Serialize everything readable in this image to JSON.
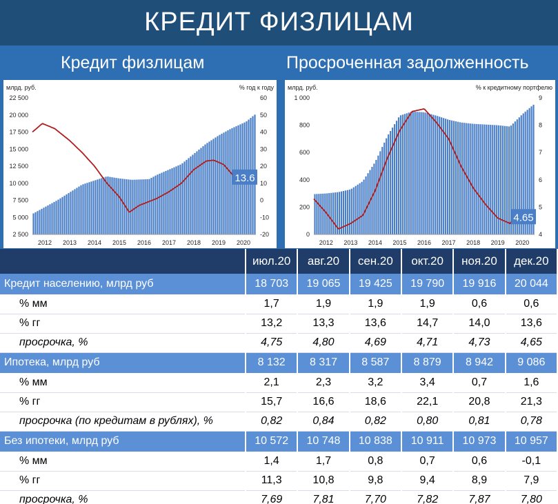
{
  "page_title": "КРЕДИТ ФИЗЛИЦАМ",
  "chart_titles": [
    "Кредит физлицам",
    "Просроченная задолженность"
  ],
  "colors": {
    "bars": "#4a7fc8",
    "line": "#b01c1c",
    "header": "#1f3d68",
    "group_row": "#5b8fd6"
  },
  "chart_data": [
    {
      "type": "bar",
      "left_axis_label": "млрд. руб.",
      "right_axis_label": "% год к году",
      "x_ticks": [
        "2012",
        "2013",
        "2014",
        "2015",
        "2016",
        "2017",
        "2018",
        "2019",
        "2020"
      ],
      "ylim_left": [
        2500,
        22500
      ],
      "yticks_left": [
        "22 500",
        "20 000",
        "17 500",
        "15 000",
        "12 500",
        "10 000",
        "7 500",
        "5 000",
        "2 500"
      ],
      "ylim_right": [
        -20,
        60
      ],
      "yticks_right": [
        "60",
        "50",
        "40",
        "30",
        "20",
        "10",
        "0",
        "-10",
        "-20"
      ],
      "bar_series": {
        "name": "Кредит физлицам",
        "anchors_x": [
          2012.0,
          2013.0,
          2014.0,
          2015.0,
          2015.5,
          2016.0,
          2016.7,
          2017.0,
          2018.0,
          2019.0,
          2019.5,
          2020.0,
          2020.3,
          2020.6,
          2020.95
        ],
        "anchors_y": [
          5500,
          7500,
          9800,
          11000,
          10700,
          10500,
          10600,
          11200,
          12800,
          15800,
          17000,
          18000,
          18500,
          19000,
          20044
        ]
      },
      "line_series": {
        "name": "% год к году",
        "anchors_x": [
          2012.0,
          2012.4,
          2012.9,
          2013.5,
          2014.0,
          2014.5,
          2015.0,
          2015.5,
          2015.9,
          2016.3,
          2017.0,
          2017.5,
          2018.0,
          2018.5,
          2019.0,
          2019.3,
          2019.7,
          2020.0,
          2020.3,
          2020.6,
          2020.95
        ],
        "anchors_y": [
          40,
          45,
          42,
          35,
          28,
          20,
          10,
          2,
          -7,
          -3,
          1,
          5,
          10,
          18,
          23,
          23.5,
          21,
          16,
          11,
          12.5,
          13.6
        ]
      },
      "last_value_label": "13.6"
    },
    {
      "type": "bar",
      "left_axis_label": "млрд. руб.",
      "right_axis_label": "% к кредитному портфелю",
      "x_ticks": [
        "2012",
        "2013",
        "2014",
        "2015",
        "2016",
        "2017",
        "2018",
        "2019",
        "2020"
      ],
      "ylim_left": [
        0,
        1000
      ],
      "yticks_left": [
        "1 000",
        "800",
        "600",
        "400",
        "200",
        "0"
      ],
      "ylim_right": [
        4,
        9
      ],
      "yticks_right": [
        "9",
        "8",
        "7",
        "6",
        "5",
        "4"
      ],
      "bar_series": {
        "name": "Просроченная задолженность",
        "anchors_x": [
          2012.0,
          2012.5,
          2013.0,
          2013.5,
          2014.0,
          2014.5,
          2015.0,
          2015.5,
          2016.0,
          2016.5,
          2017.0,
          2017.5,
          2018.0,
          2018.5,
          2019.0,
          2019.5,
          2020.0,
          2020.5,
          2020.95
        ],
        "anchors_y": [
          295,
          300,
          310,
          330,
          390,
          530,
          720,
          870,
          900,
          895,
          870,
          840,
          820,
          810,
          805,
          800,
          790,
          880,
          950
        ]
      },
      "line_series": {
        "name": "% к кредитному портфелю",
        "anchors_x": [
          2012.0,
          2012.5,
          2013.0,
          2013.5,
          2014.0,
          2014.5,
          2015.0,
          2015.5,
          2016.0,
          2016.5,
          2017.0,
          2017.5,
          2018.0,
          2018.5,
          2019.0,
          2019.5,
          2020.0,
          2020.3,
          2020.6,
          2020.95
        ],
        "anchors_y": [
          5.3,
          4.8,
          4.2,
          4.4,
          4.7,
          5.6,
          6.8,
          7.8,
          8.5,
          8.6,
          8.1,
          7.5,
          6.5,
          5.7,
          5.1,
          4.6,
          4.4,
          4.8,
          4.85,
          4.65
        ]
      },
      "last_value_label": "4.65"
    }
  ],
  "table": {
    "header": [
      "",
      "июл.20",
      "авг.20",
      "сен.20",
      "окт.20",
      "ноя.20",
      "дек.20"
    ],
    "rows": [
      {
        "kind": "grp",
        "label": "Кредит населению, млрд руб",
        "values": [
          "18 703",
          "19 065",
          "19 425",
          "19 790",
          "19 916",
          "20 044"
        ]
      },
      {
        "kind": "sub",
        "label": "% мм",
        "values": [
          "1,7",
          "1,9",
          "1,9",
          "1,9",
          "0,6",
          "0,6"
        ]
      },
      {
        "kind": "sub",
        "label": "% гг",
        "values": [
          "13,2",
          "13,3",
          "13,6",
          "14,7",
          "14,0",
          "13,6"
        ]
      },
      {
        "kind": "sub it",
        "label": "просрочка, %",
        "values": [
          "4,75",
          "4,80",
          "4,69",
          "4,71",
          "4,73",
          "4,65"
        ]
      },
      {
        "kind": "grp",
        "label": "Ипотека, млрд руб",
        "values": [
          "8 132",
          "8 317",
          "8 587",
          "8 879",
          "8 942",
          "9 086"
        ]
      },
      {
        "kind": "sub",
        "label": "% мм",
        "values": [
          "2,1",
          "2,3",
          "3,2",
          "3,4",
          "0,7",
          "1,6"
        ]
      },
      {
        "kind": "sub",
        "label": "% гг",
        "values": [
          "15,7",
          "16,6",
          "18,6",
          "22,1",
          "20,8",
          "21,3"
        ]
      },
      {
        "kind": "sub it",
        "label": "просрочка (по кредитам в рублях), %",
        "values": [
          "0,82",
          "0,84",
          "0,82",
          "0,80",
          "0,81",
          "0,78"
        ]
      },
      {
        "kind": "grp",
        "label": "Без ипотеки, млрд руб",
        "values": [
          "10 572",
          "10 748",
          "10 838",
          "10 911",
          "10 973",
          "10 957"
        ]
      },
      {
        "kind": "sub",
        "label": "% мм",
        "values": [
          "1,4",
          "1,7",
          "0,8",
          "0,7",
          "0,6",
          "-0,1"
        ]
      },
      {
        "kind": "sub",
        "label": "% гг",
        "values": [
          "11,3",
          "10,8",
          "9,8",
          "9,4",
          "8,9",
          "7,9"
        ]
      },
      {
        "kind": "sub it",
        "label": "просрочка, %",
        "values": [
          "7,69",
          "7,81",
          "7,70",
          "7,82",
          "7,87",
          "7,80"
        ]
      }
    ]
  }
}
